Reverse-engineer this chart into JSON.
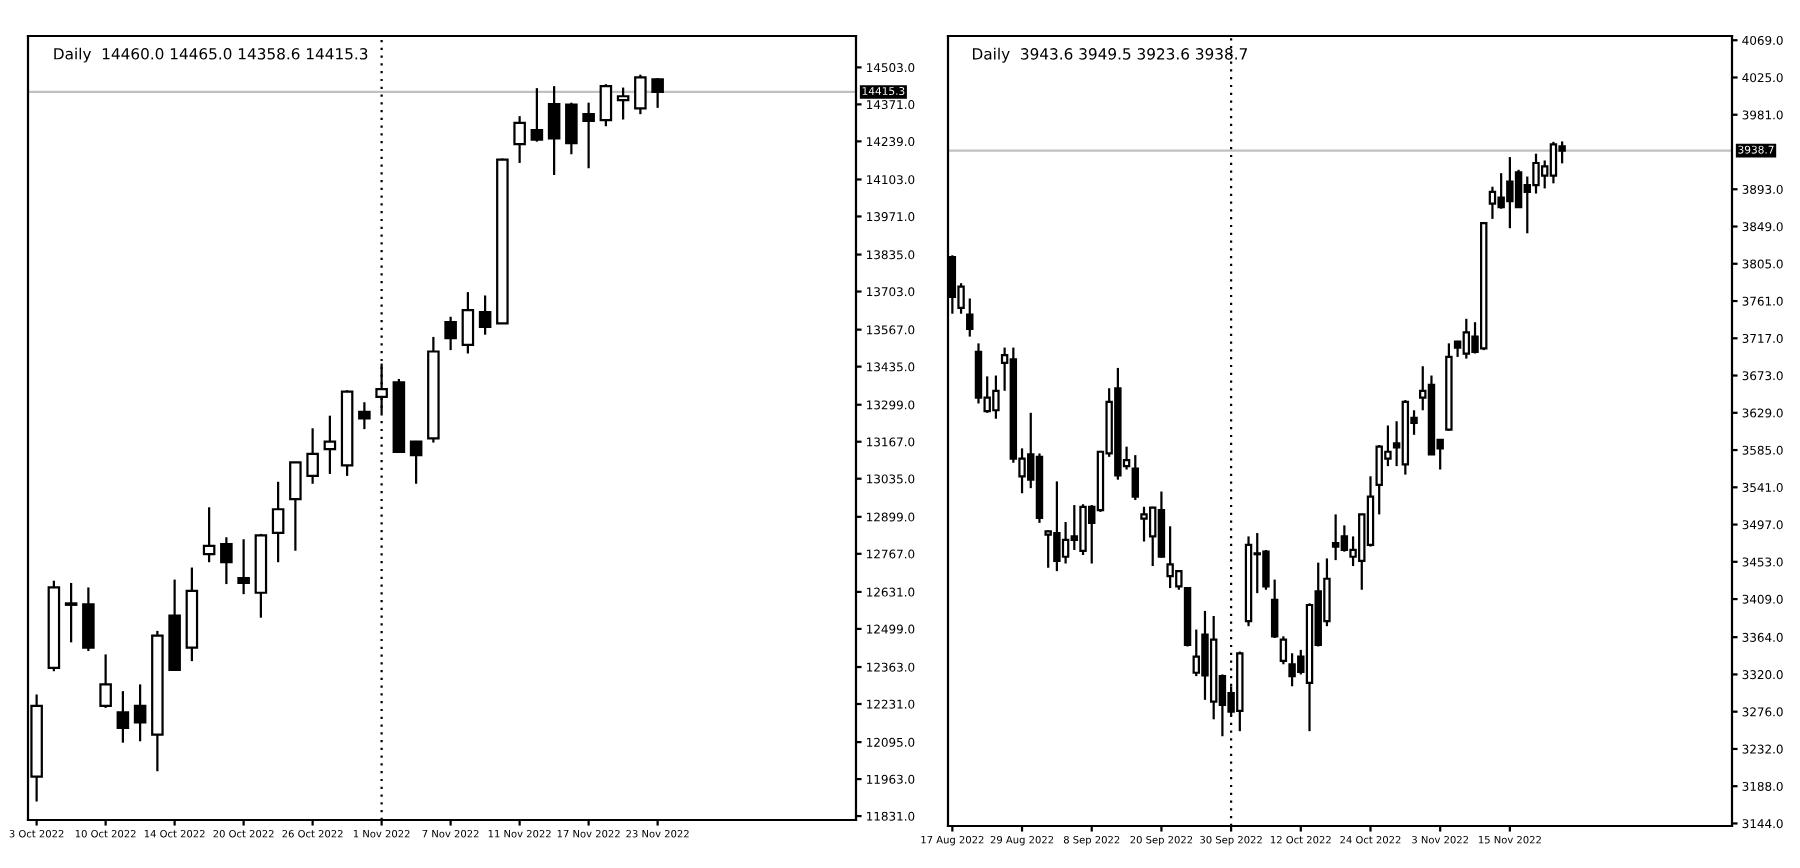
{
  "chart_data": [
    {
      "type": "candlestick",
      "title": "Daily  14460.0 14465.0 14358.6 14415.3",
      "categories": [
        "3 Oct 2022",
        null,
        null,
        null,
        "10 Oct 2022",
        null,
        null,
        null,
        "14 Oct 2022",
        null,
        null,
        null,
        "20 Oct 2022",
        null,
        null,
        null,
        "26 Oct 2022",
        null,
        null,
        null,
        "1 Nov 2022",
        null,
        null,
        null,
        "7 Nov 2022",
        null,
        null,
        null,
        "11 Nov 2022",
        null,
        null,
        null,
        "17 Nov 2022",
        null,
        null,
        null,
        "23 Nov 2022",
        null,
        null,
        null,
        null,
        null,
        null,
        null,
        null,
        null,
        null,
        null
      ],
      "ohlc": [
        [
          11972,
          12265,
          11883,
          12224
        ],
        [
          12360,
          12671,
          12348,
          12647
        ],
        [
          12590,
          12663,
          12451,
          12585
        ],
        [
          12587,
          12647,
          12420,
          12432
        ],
        [
          12224,
          12408,
          12217,
          12301
        ],
        [
          12201,
          12277,
          12093,
          12146
        ],
        [
          12224,
          12301,
          12098,
          12165
        ],
        [
          12122,
          12492,
          11991,
          12475
        ],
        [
          12546,
          12675,
          12350,
          12353
        ],
        [
          12432,
          12718,
          12384,
          12635
        ],
        [
          12766,
          12933,
          12737,
          12795
        ],
        [
          12802,
          12826,
          12659,
          12737
        ],
        [
          12680,
          12819,
          12623,
          12663
        ],
        [
          12628,
          12838,
          12539,
          12833
        ],
        [
          12842,
          13024,
          12737,
          12926
        ],
        [
          12962,
          13095,
          12778,
          13093
        ],
        [
          13045,
          13215,
          13017,
          13124
        ],
        [
          13141,
          13260,
          13052,
          13167
        ],
        [
          13083,
          13351,
          13045,
          13346
        ],
        [
          13274,
          13308,
          13212,
          13250
        ],
        [
          13327,
          13446,
          13267,
          13355
        ],
        [
          13379,
          13391,
          13128,
          13131
        ],
        [
          13167,
          13170,
          13017,
          13119
        ],
        [
          13179,
          13541,
          13164,
          13489
        ],
        [
          13594,
          13613,
          13494,
          13537
        ],
        [
          13513,
          13701,
          13482,
          13637
        ],
        [
          13630,
          13689,
          13549,
          13577
        ],
        [
          13589,
          14178,
          13587,
          14174
        ],
        [
          14229,
          14329,
          14162,
          14305
        ],
        [
          14279,
          14429,
          14238,
          14245
        ],
        [
          14372,
          14436,
          14119,
          14250
        ],
        [
          14370,
          14377,
          14193,
          14233
        ],
        [
          14336,
          14377,
          14143,
          14312
        ],
        [
          14315,
          14443,
          14293,
          14436
        ],
        [
          14386,
          14431,
          14317,
          14400
        ],
        [
          14357,
          14477,
          14336,
          14467
        ],
        [
          14460.0,
          14465.0,
          14358.6,
          14415.3
        ],
        null,
        null,
        null,
        null,
        null,
        null,
        null,
        null,
        null,
        null,
        null
      ],
      "ylim": [
        11817,
        14615
      ],
      "yticks": [
        {
          "value": 11831,
          "label": "11831.0"
        },
        {
          "value": 11963,
          "label": "11963.0"
        },
        {
          "value": 12095,
          "label": "12095.0"
        },
        {
          "value": 12231,
          "label": "12231.0"
        },
        {
          "value": 12363,
          "label": "12363.0"
        },
        {
          "value": 12499,
          "label": "12499.0"
        },
        {
          "value": 12631,
          "label": "12631.0"
        },
        {
          "value": 12767,
          "label": "12767.0"
        },
        {
          "value": 12899,
          "label": "12899.0"
        },
        {
          "value": 13035,
          "label": "13035.0"
        },
        {
          "value": 13167,
          "label": "13167.0"
        },
        {
          "value": 13299,
          "label": "13299.0"
        },
        {
          "value": 13435,
          "label": "13435.0"
        },
        {
          "value": 13567,
          "label": "13567.0"
        },
        {
          "value": 13703,
          "label": "13703.0"
        },
        {
          "value": 13835,
          "label": "13835.0"
        },
        {
          "value": 13971,
          "label": "13971.0"
        },
        {
          "value": 14103,
          "label": "14103.0"
        },
        {
          "value": 14239,
          "label": "14239.0"
        },
        {
          "value": 14371,
          "label": "14371.0"
        },
        {
          "value": 14503,
          "label": "14503.0"
        }
      ],
      "ref_lines": [
        {
          "axis": "y",
          "value": 14415.3,
          "label": "14415.3",
          "color": "#c0c0c0",
          "line_style": "solid"
        },
        {
          "axis": "x",
          "value": "1 Nov 2022",
          "color": "#000000",
          "line_style": "dotted"
        }
      ]
    },
    {
      "type": "candlestick",
      "title": "Daily  3943.6 3949.5 3923.6 3938.7",
      "categories": [
        "17 Aug 2022",
        null,
        null,
        null,
        null,
        null,
        null,
        null,
        "29 Aug 2022",
        null,
        null,
        null,
        null,
        null,
        null,
        null,
        "8 Sep 2022",
        null,
        null,
        null,
        null,
        null,
        null,
        null,
        "20 Sep 2022",
        null,
        null,
        null,
        null,
        null,
        null,
        null,
        "30 Sep 2022",
        null,
        null,
        null,
        null,
        null,
        null,
        null,
        "12 Oct 2022",
        null,
        null,
        null,
        null,
        null,
        null,
        null,
        "24 Oct 2022",
        null,
        null,
        null,
        null,
        null,
        null,
        null,
        "3 Nov 2022",
        null,
        null,
        null,
        null,
        null,
        null,
        null,
        "15 Nov 2022",
        null,
        null,
        null,
        null,
        null,
        null,
        null,
        null,
        null,
        null,
        null,
        null,
        null,
        null,
        null,
        null,
        null,
        null,
        null,
        null,
        null,
        null,
        null,
        null,
        null
      ],
      "ohlc": [
        [
          3813,
          3815,
          3746,
          3766
        ],
        [
          3753,
          3782,
          3746,
          3778
        ],
        [
          3745,
          3764,
          3719,
          3728
        ],
        [
          3701,
          3711,
          3640,
          3647
        ],
        [
          3631,
          3672,
          3629,
          3647
        ],
        [
          3632,
          3673,
          3622,
          3655
        ],
        [
          3688,
          3706,
          3655,
          3697
        ],
        [
          3692,
          3706,
          3570,
          3575
        ],
        [
          3554,
          3587,
          3534,
          3575
        ],
        [
          3580,
          3629,
          3540,
          3550
        ],
        [
          3577,
          3581,
          3499,
          3505
        ],
        [
          3485,
          3490,
          3446,
          3489
        ],
        [
          3487,
          3548,
          3442,
          3454
        ],
        [
          3459,
          3500,
          3451,
          3479
        ],
        [
          3483,
          3520,
          3467,
          3479
        ],
        [
          3466,
          3521,
          3461,
          3518
        ],
        [
          3518,
          3520,
          3451,
          3499
        ],
        [
          3514,
          3584,
          3512,
          3583
        ],
        [
          3581,
          3658,
          3577,
          3642
        ],
        [
          3658,
          3682,
          3550,
          3555
        ],
        [
          3566,
          3589,
          3562,
          3573
        ],
        [
          3563,
          3579,
          3526,
          3530
        ],
        [
          3504,
          3518,
          3477,
          3509
        ],
        [
          3483,
          3518,
          3448,
          3517
        ],
        [
          3514,
          3536,
          3458,
          3459
        ],
        [
          3436,
          3495,
          3422,
          3450
        ],
        [
          3424,
          3442,
          3420,
          3442
        ],
        [
          3422,
          3422,
          3353,
          3355
        ],
        [
          3322,
          3373,
          3318,
          3341
        ],
        [
          3367,
          3395,
          3290,
          3319
        ],
        [
          3288,
          3389,
          3267,
          3361
        ],
        [
          3318,
          3320,
          3247,
          3284
        ],
        [
          3298,
          3306,
          3271,
          3276
        ],
        [
          3277,
          3347,
          3253,
          3345
        ],
        [
          3383,
          3483,
          3377,
          3473
        ],
        [
          3462,
          3487,
          3416,
          3463
        ],
        [
          3465,
          3467,
          3420,
          3424
        ],
        [
          3408,
          3432,
          3363,
          3365
        ],
        [
          3336,
          3365,
          3332,
          3361
        ],
        [
          3332,
          3345,
          3306,
          3318
        ],
        [
          3341,
          3349,
          3320,
          3323
        ],
        [
          3310,
          3404,
          3253,
          3402
        ],
        [
          3418,
          3452,
          3353,
          3355
        ],
        [
          3383,
          3457,
          3377,
          3433
        ],
        [
          3475,
          3509,
          3455,
          3471
        ],
        [
          3483,
          3496,
          3465,
          3467
        ],
        [
          3459,
          3483,
          3448,
          3467
        ],
        [
          3454,
          3509,
          3420,
          3509
        ],
        [
          3473,
          3554,
          3471,
          3530
        ],
        [
          3544,
          3591,
          3509,
          3589
        ],
        [
          3575,
          3614,
          3566,
          3583
        ],
        [
          3593,
          3619,
          3566,
          3588
        ],
        [
          3568,
          3644,
          3556,
          3642
        ],
        [
          3623,
          3632,
          3603,
          3617
        ],
        [
          3647,
          3684,
          3632,
          3655
        ],
        [
          3662,
          3673,
          3580,
          3580
        ],
        [
          3597,
          3597,
          3562,
          3587
        ],
        [
          3609,
          3711,
          3608,
          3695
        ],
        [
          3713,
          3714,
          3695,
          3706
        ],
        [
          3699,
          3740,
          3693,
          3724
        ],
        [
          3719,
          3736,
          3699,
          3701
        ],
        [
          3705,
          3854,
          3703,
          3853
        ],
        [
          3876,
          3896,
          3858,
          3890
        ],
        [
          3883,
          3912,
          3870,
          3872
        ],
        [
          3902,
          3931,
          3847,
          3879
        ],
        [
          3913,
          3916,
          3871,
          3872
        ],
        [
          3898,
          3908,
          3841,
          3890
        ],
        [
          3898,
          3935,
          3888,
          3924
        ],
        [
          3909,
          3927,
          3894,
          3920
        ],
        [
          3909,
          3949,
          3900,
          3946
        ],
        [
          3943.6,
          3949.5,
          3923.6,
          3938.7
        ],
        null,
        null,
        null,
        null,
        null,
        null,
        null,
        null,
        null,
        null,
        null,
        null,
        null,
        null,
        null,
        null,
        null,
        null,
        null
      ],
      "ylim": [
        3141,
        4074
      ],
      "yticks": [
        {
          "value": 3144,
          "label": "3144.0"
        },
        {
          "value": 3188,
          "label": "3188.0"
        },
        {
          "value": 3232,
          "label": "3232.0"
        },
        {
          "value": 3276,
          "label": "3276.0"
        },
        {
          "value": 3320,
          "label": "3320.0"
        },
        {
          "value": 3364,
          "label": "3364.0"
        },
        {
          "value": 3409,
          "label": "3409.0"
        },
        {
          "value": 3453,
          "label": "3453.0"
        },
        {
          "value": 3497,
          "label": "3497.0"
        },
        {
          "value": 3541,
          "label": "3541.0"
        },
        {
          "value": 3585,
          "label": "3585.0"
        },
        {
          "value": 3629,
          "label": "3629.0"
        },
        {
          "value": 3673,
          "label": "3673.0"
        },
        {
          "value": 3717,
          "label": "3717.0"
        },
        {
          "value": 3761,
          "label": "3761.0"
        },
        {
          "value": 3805,
          "label": "3805.0"
        },
        {
          "value": 3849,
          "label": "3849.0"
        },
        {
          "value": 3893,
          "label": "3893.0"
        },
        {
          "value": 3981,
          "label": "3981.0"
        },
        {
          "value": 4025,
          "label": "4025.0"
        },
        {
          "value": 4069,
          "label": "4069.0"
        }
      ],
      "ref_lines": [
        {
          "axis": "y",
          "value": 3938.7,
          "label": "3938.7",
          "color": "#c0c0c0",
          "line_style": "solid"
        },
        {
          "axis": "x",
          "value": "30 Sep 2022",
          "color": "#000000",
          "line_style": "dotted"
        }
      ]
    }
  ]
}
